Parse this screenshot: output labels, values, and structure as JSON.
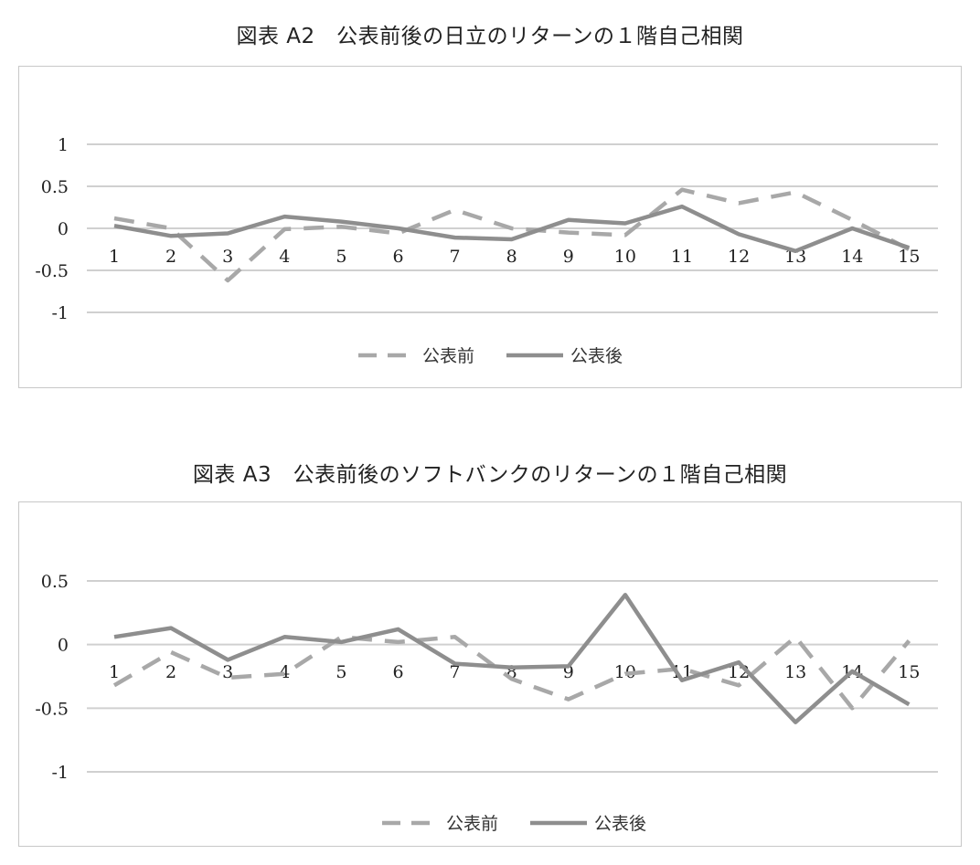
{
  "charts": [
    {
      "title": "図表 A2　公表前後の日立のリターンの１階自己相関"
    },
    {
      "title": "図表 A3　公表前後のソフトバンクのリターンの１階自己相関"
    }
  ],
  "chart_data": [
    {
      "type": "line",
      "title": "図表 A2　公表前後の日立のリターンの１階自己相関",
      "categories": [
        "1",
        "2",
        "3",
        "4",
        "5",
        "6",
        "7",
        "8",
        "9",
        "10",
        "11",
        "12",
        "13",
        "14",
        "15"
      ],
      "yticks": [
        "1",
        "0.5",
        "0",
        "-0.5",
        "-1"
      ],
      "ytick_values": [
        1,
        0.5,
        0,
        -0.5,
        -1
      ],
      "ylim": [
        -1,
        1
      ],
      "grid": true,
      "legend_position": "bottom",
      "series": [
        {
          "name": "公表前",
          "style": "dashed",
          "color": "#a8a8a8",
          "values": [
            0.12,
            0.0,
            -0.62,
            -0.01,
            0.02,
            -0.06,
            0.22,
            0.0,
            -0.05,
            -0.08,
            0.46,
            0.3,
            0.43,
            0.1,
            -0.25
          ]
        },
        {
          "name": "公表後",
          "style": "solid",
          "color": "#8e8e8e",
          "values": [
            0.03,
            -0.09,
            -0.06,
            0.14,
            0.08,
            0.0,
            -0.11,
            -0.13,
            0.1,
            0.06,
            0.26,
            -0.07,
            -0.27,
            0.0,
            -0.23
          ]
        }
      ]
    },
    {
      "type": "line",
      "title": "図表 A3　公表前後のソフトバンクのリターンの１階自己相関",
      "categories": [
        "1",
        "2",
        "3",
        "4",
        "5",
        "6",
        "7",
        "8",
        "9",
        "10",
        "11",
        "12",
        "13",
        "14",
        "15"
      ],
      "yticks": [
        "0.5",
        "0",
        "-0.5",
        "-1"
      ],
      "ytick_values": [
        0.5,
        0,
        -0.5,
        -1
      ],
      "ylim": [
        -1,
        0.5
      ],
      "grid": true,
      "legend_position": "bottom",
      "series": [
        {
          "name": "公表前",
          "style": "dashed",
          "color": "#a8a8a8",
          "values": [
            -0.32,
            -0.06,
            -0.26,
            -0.23,
            0.06,
            0.02,
            0.06,
            -0.27,
            -0.43,
            -0.23,
            -0.19,
            -0.32,
            0.06,
            -0.5,
            0.03
          ]
        },
        {
          "name": "公表後",
          "style": "solid",
          "color": "#8e8e8e",
          "values": [
            0.06,
            0.13,
            -0.12,
            0.06,
            0.02,
            0.12,
            -0.15,
            -0.18,
            -0.17,
            0.39,
            -0.28,
            -0.14,
            -0.61,
            -0.21,
            -0.47
          ]
        }
      ]
    }
  ]
}
